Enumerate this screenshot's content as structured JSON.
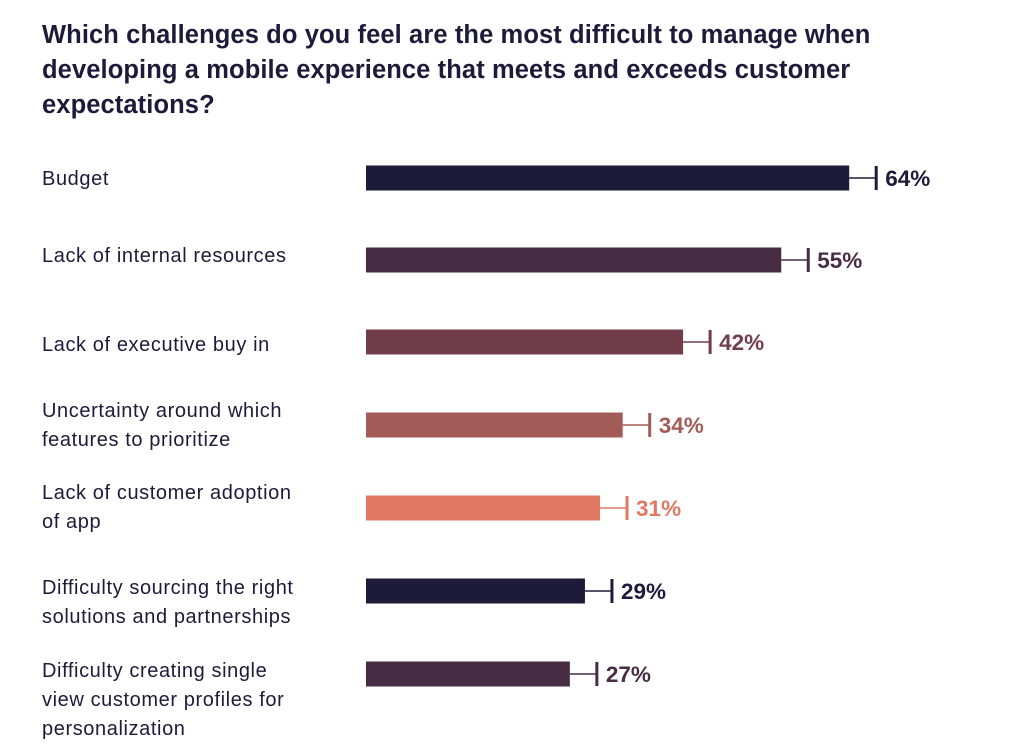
{
  "page": {
    "title": "Which challenges do you feel are the most difficult to manage when developing a mobile experience that meets and exceeds customer expectations?"
  },
  "colors": {
    "title_text": "#1e1a3a",
    "label_text": "#1e1a3a"
  },
  "chart_data": {
    "type": "bar",
    "orientation": "horizontal",
    "title": "Which challenges do you feel are the most difficult to manage when developing a mobile experience that meets and exceeds customer expectations?",
    "xlabel": "",
    "ylabel": "",
    "unit": "%",
    "xlim": [
      0,
      64
    ],
    "grid": false,
    "error_bars": true,
    "bars": [
      {
        "label": [
          "Budget"
        ],
        "value": 64,
        "value_label": "64%",
        "color": "#1e1a3a"
      },
      {
        "label": [
          "Lack of internal resources"
        ],
        "value": 55,
        "value_label": "55%",
        "color": "#472c44"
      },
      {
        "label": [
          "Lack of executive buy in"
        ],
        "value": 42,
        "value_label": "42%",
        "color": "#723d4b"
      },
      {
        "label": [
          "Uncertainty around which",
          "features to prioritize"
        ],
        "value": 34,
        "value_label": "34%",
        "color": "#a35b57"
      },
      {
        "label": [
          "Lack of customer adoption",
          "of app"
        ],
        "value": 31,
        "value_label": "31%",
        "color": "#e07862"
      },
      {
        "label": [
          "Difficulty sourcing the right",
          "solutions and partnerships"
        ],
        "value": 29,
        "value_label": "29%",
        "color": "#1e1a3a"
      },
      {
        "label": [
          "Difficulty creating single",
          "view customer profiles for",
          "personalization"
        ],
        "value": 27,
        "value_label": "27%",
        "color": "#472c44"
      }
    ]
  }
}
